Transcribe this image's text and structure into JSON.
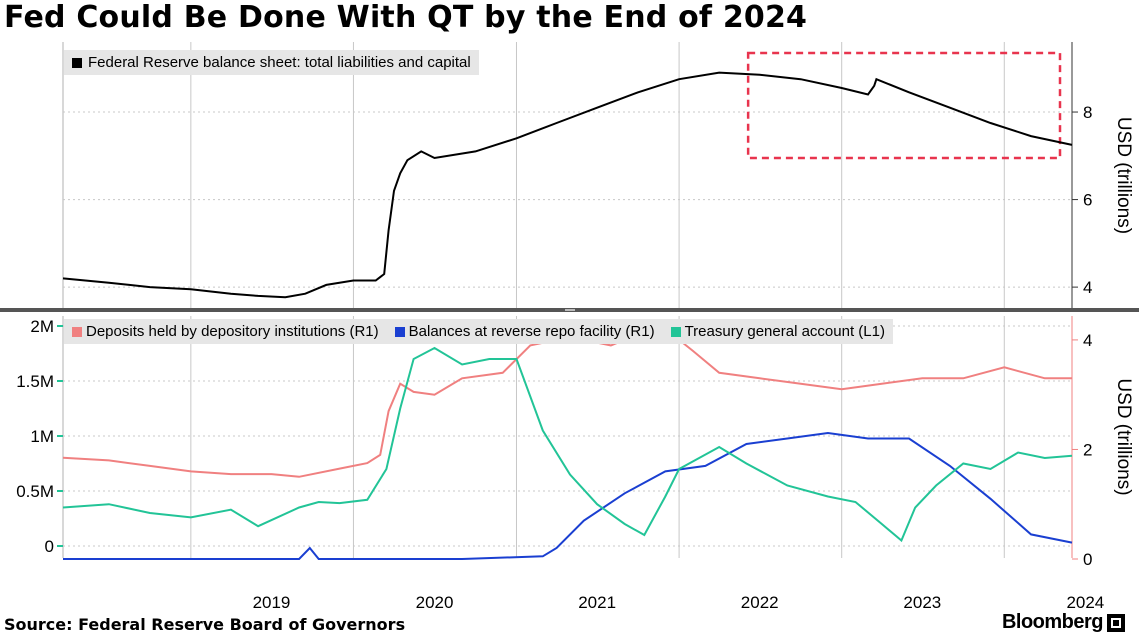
{
  "title": "Fed Could Be Done With QT by the End of 2024",
  "source": "Source: Federal Reserve Board of Governors",
  "brand": "Bloomberg",
  "brand_icon": "bloomberg-terminal-icon",
  "colors": {
    "balance": "#000000",
    "deposits": "#f08080",
    "reverse_repo": "#1a3fd1",
    "tga": "#22c497",
    "highlight_box": "#e8344e",
    "grid": "#c8c8c8"
  },
  "chart_data": [
    {
      "type": "line",
      "legend": [
        "Federal Reserve balance sheet: total liabilities and capital"
      ],
      "ylabel": "USD (trillions)",
      "ylim": [
        3.5,
        9.6
      ],
      "yticks": [
        4,
        6,
        8
      ],
      "xlim": [
        "2018-03-20",
        "2024-06-01"
      ],
      "annotation": "dashed highlight box, mid-2022 to 2024",
      "series": [
        {
          "name": "Federal Reserve balance sheet: total liabilities and capital",
          "x": [
            "2018-03-20",
            "2018-07-01",
            "2018-10-01",
            "2019-01-01",
            "2019-04-01",
            "2019-06-01",
            "2019-08-01",
            "2019-09-15",
            "2019-11-01",
            "2020-01-01",
            "2020-02-20",
            "2020-03-10",
            "2020-03-20",
            "2020-04-01",
            "2020-04-15",
            "2020-05-01",
            "2020-06-01",
            "2020-07-01",
            "2020-10-01",
            "2021-01-01",
            "2021-04-01",
            "2021-07-01",
            "2021-10-01",
            "2022-01-01",
            "2022-04-01",
            "2022-07-01",
            "2022-10-01",
            "2023-01-01",
            "2023-03-01",
            "2023-03-15",
            "2023-03-20",
            "2023-06-01",
            "2023-09-01",
            "2023-12-01",
            "2024-03-01",
            "2024-06-01"
          ],
          "values": [
            4.2,
            4.1,
            4.0,
            3.95,
            3.85,
            3.8,
            3.77,
            3.85,
            4.05,
            4.15,
            4.15,
            4.3,
            5.3,
            6.2,
            6.6,
            6.9,
            7.1,
            6.95,
            7.1,
            7.4,
            7.75,
            8.1,
            8.45,
            8.75,
            8.9,
            8.85,
            8.75,
            8.55,
            8.4,
            8.6,
            8.75,
            8.45,
            8.1,
            7.75,
            7.45,
            7.25
          ]
        }
      ]
    },
    {
      "type": "line",
      "legend": [
        "Deposits held by depository institutions (R1)",
        "Balances at reverse repo facility (R1)",
        "Treasury general account  (L1)"
      ],
      "ylabel": "USD (trillions)",
      "left_axis": {
        "ticks": [
          "0",
          "0.5M",
          "1M",
          "1.5M",
          "2M"
        ],
        "ylim": [
          0,
          2000000
        ]
      },
      "right_axis": {
        "ticks": [
          "0",
          "2",
          "4"
        ],
        "ylim": [
          0,
          4.4
        ]
      },
      "xlim": [
        "2018-03-20",
        "2024-06-01"
      ],
      "xticks": [
        "2019",
        "2020",
        "2021",
        "2022",
        "2023",
        "2024"
      ],
      "series": [
        {
          "name": "Deposits held by depository institutions (R1)",
          "axis": "right",
          "x": [
            "2018-03-20",
            "2018-07-01",
            "2018-10-01",
            "2019-01-01",
            "2019-04-01",
            "2019-07-01",
            "2019-09-01",
            "2019-12-01",
            "2020-02-01",
            "2020-03-01",
            "2020-03-20",
            "2020-04-15",
            "2020-05-15",
            "2020-07-01",
            "2020-09-01",
            "2020-12-01",
            "2021-02-01",
            "2021-05-01",
            "2021-08-01",
            "2021-11-01",
            "2022-01-01",
            "2022-02-01",
            "2022-04-01",
            "2022-07-01",
            "2022-10-01",
            "2023-01-01",
            "2023-04-01",
            "2023-07-01",
            "2023-10-01",
            "2024-01-01",
            "2024-04-01",
            "2024-06-01"
          ],
          "values": [
            1.85,
            1.8,
            1.7,
            1.6,
            1.55,
            1.55,
            1.5,
            1.65,
            1.75,
            1.9,
            2.7,
            3.2,
            3.05,
            3.0,
            3.3,
            3.4,
            3.9,
            4.05,
            3.9,
            4.2,
            4.0,
            3.8,
            3.4,
            3.3,
            3.2,
            3.1,
            3.2,
            3.3,
            3.3,
            3.5,
            3.3,
            3.3
          ]
        },
        {
          "name": "Balances at reverse repo facility (R1)",
          "axis": "right",
          "x": [
            "2018-03-20",
            "2019-09-01",
            "2019-09-25",
            "2019-10-15",
            "2020-09-01",
            "2021-03-01",
            "2021-04-01",
            "2021-06-01",
            "2021-09-01",
            "2021-12-01",
            "2022-03-01",
            "2022-06-01",
            "2022-09-01",
            "2022-12-01",
            "2023-03-01",
            "2023-06-01",
            "2023-09-01",
            "2023-12-01",
            "2024-03-01",
            "2024-06-01"
          ],
          "values": [
            0.0,
            0.0,
            0.2,
            0.0,
            0.0,
            0.05,
            0.2,
            0.7,
            1.2,
            1.6,
            1.7,
            2.1,
            2.2,
            2.3,
            2.2,
            2.2,
            1.7,
            1.1,
            0.45,
            0.3
          ]
        },
        {
          "name": "Treasury general account  (L1)",
          "axis": "left",
          "x": [
            "2018-03-20",
            "2018-07-01",
            "2018-10-01",
            "2019-01-01",
            "2019-04-01",
            "2019-06-01",
            "2019-09-01",
            "2019-10-15",
            "2019-12-01",
            "2020-02-01",
            "2020-03-15",
            "2020-04-15",
            "2020-05-15",
            "2020-07-01",
            "2020-09-01",
            "2020-11-01",
            "2021-01-01",
            "2021-03-01",
            "2021-05-01",
            "2021-07-01",
            "2021-09-01",
            "2021-10-15",
            "2021-12-01",
            "2022-01-01",
            "2022-04-01",
            "2022-06-01",
            "2022-09-01",
            "2022-12-01",
            "2023-02-01",
            "2023-04-01",
            "2023-05-15",
            "2023-06-15",
            "2023-08-01",
            "2023-10-01",
            "2023-12-01",
            "2024-02-01",
            "2024-04-01",
            "2024-06-01"
          ],
          "values": [
            350000,
            380000,
            300000,
            260000,
            330000,
            180000,
            350000,
            400000,
            390000,
            420000,
            700000,
            1250000,
            1700000,
            1800000,
            1650000,
            1700000,
            1700000,
            1050000,
            650000,
            380000,
            200000,
            100000,
            450000,
            700000,
            900000,
            750000,
            550000,
            450000,
            400000,
            200000,
            50000,
            350000,
            550000,
            750000,
            700000,
            850000,
            800000,
            820000
          ]
        }
      ]
    }
  ]
}
